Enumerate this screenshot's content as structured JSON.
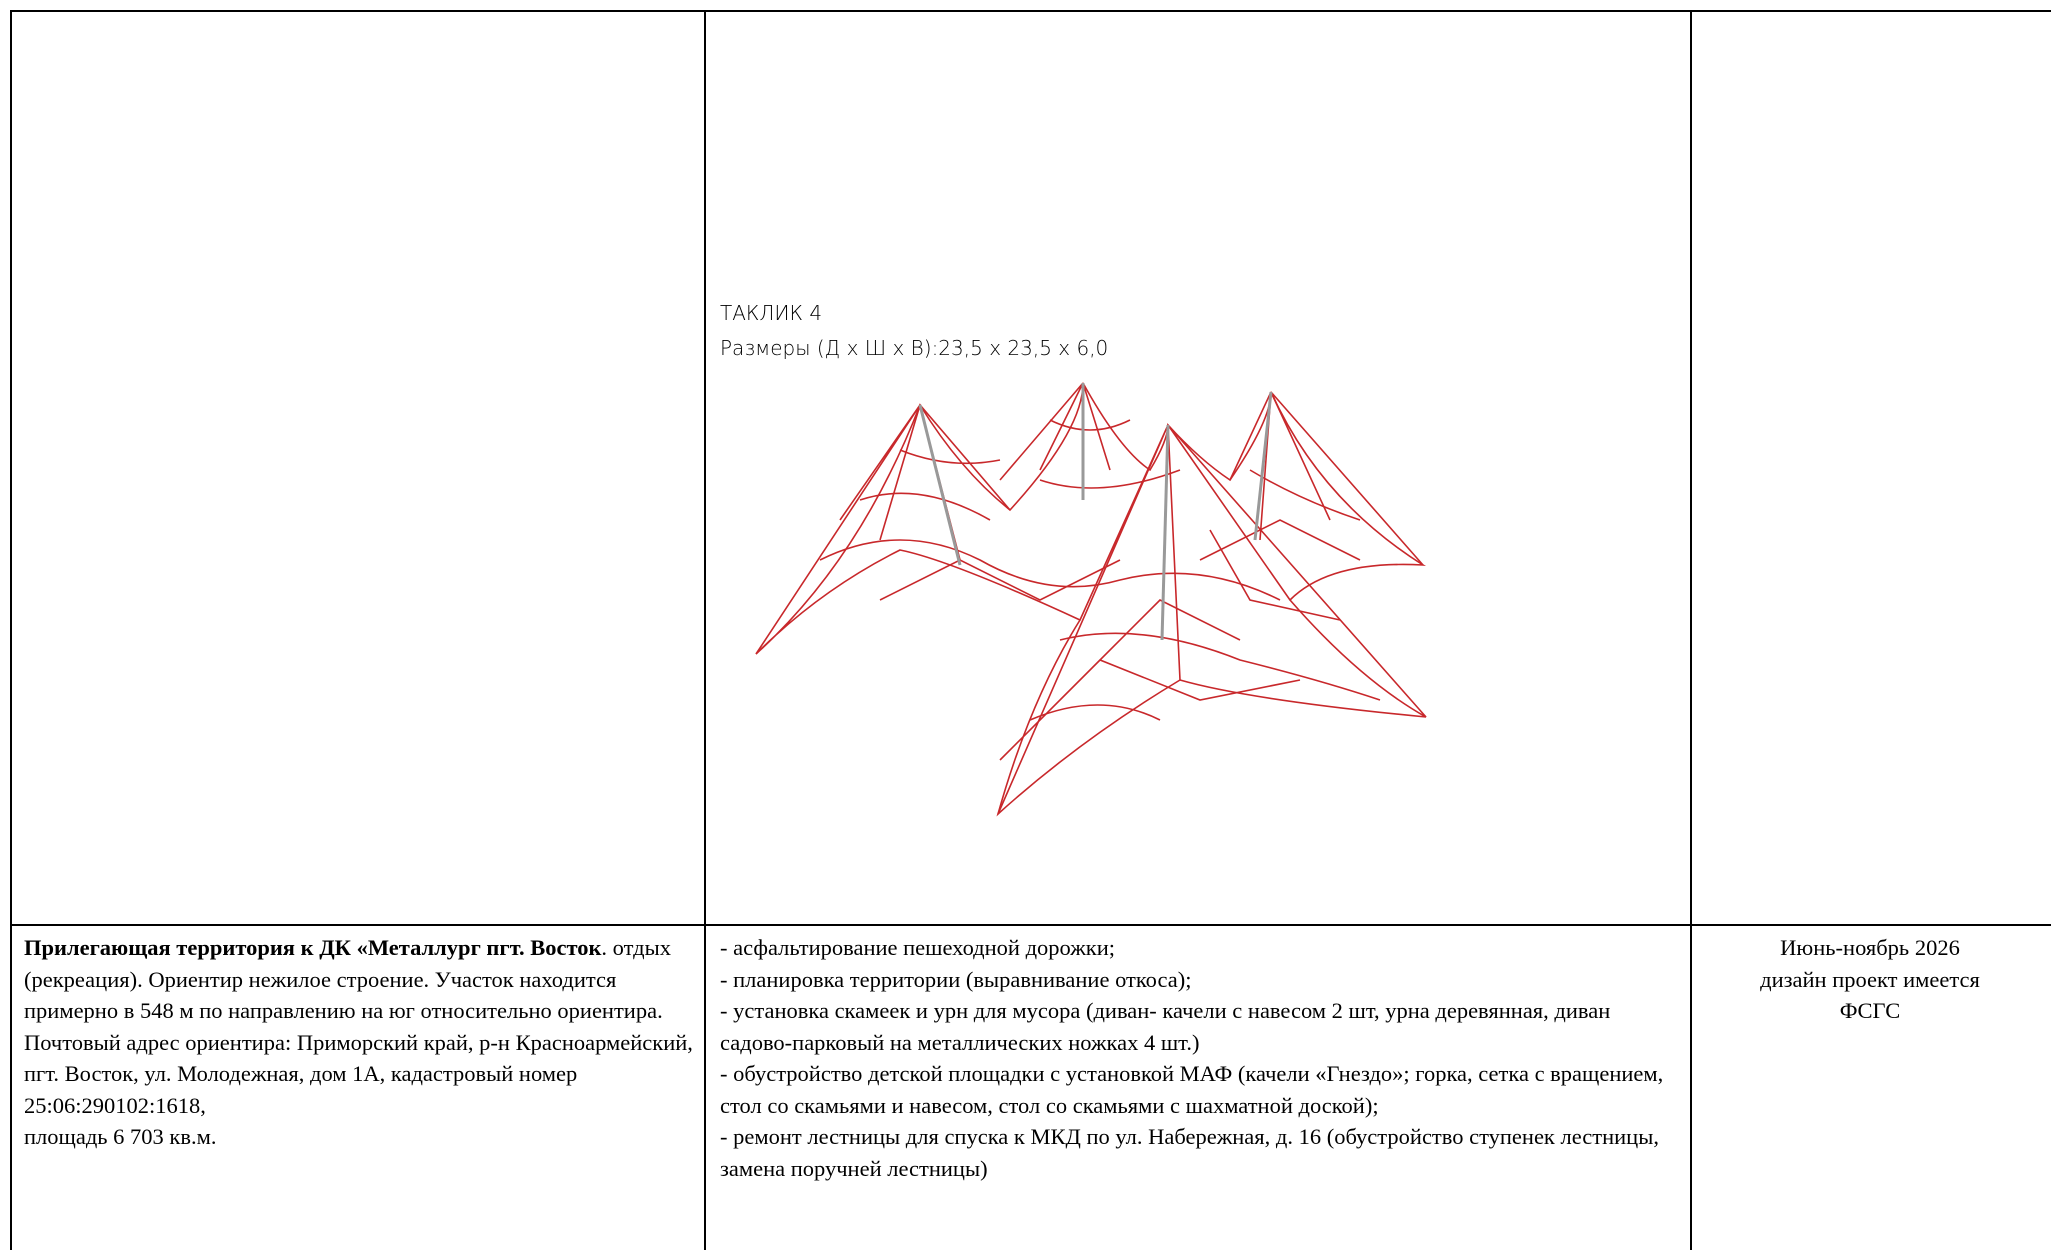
{
  "table": {
    "rows": [
      [
        {
          "text": ""
        },
        {
          "caption": [
            "ТАКЛИК 4",
            "Размеры (Д х Ш х В):23,5 х 23,5 х 6,0"
          ]
        },
        {
          "text": ""
        }
      ],
      [
        {
          "bold": "Прилегающая территория к ДК «Металлург пгт. Восток",
          "text": ". отдых (рекреация). Ориентир нежилое строение. Участок находится примерно в 548 м по направлению на юг относительно ориентира. Почтовый адрес ориентира: Приморский край, р-н Красноармейский, пгт. Восток, ул. Молодежная, дом 1А, кадастровый номер 25:06:290102:1618,\nплощадь 6 703 кв.м."
        },
        {
          "items": [
            "- асфальтирование пешеходной дорожки;",
            "- планировка территории (выравнивание откоса);",
            "- установка скамеек и урн для мусора (диван- качели с навесом 2 шт, урна деревянная, диван садово-парковый на металлических ножках 4 шт.)",
            "- обустройство детской площадки с установкой МАФ (качели «Гнездо»; горка, сетка с вращением, стол со скамьями и навесом, стол со скамьями с шахматной доской);",
            "- ремонт лестницы для спуска к МКД по ул. Набережная, д. 16 (обустройство ступенек лестницы, замена поручней лестницы)"
          ]
        },
        {
          "lines": [
            "Июнь-ноябрь 2026",
            "дизайн проект имеется",
            "ФСГС"
          ]
        }
      ]
    ]
  }
}
